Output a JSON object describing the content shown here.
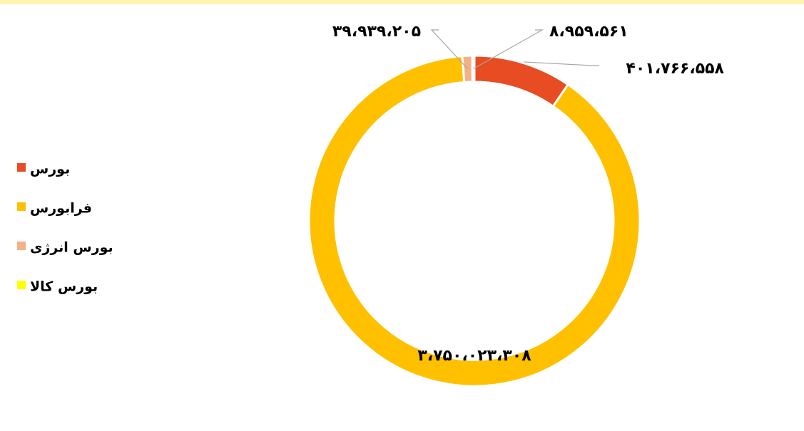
{
  "chart_data": {
    "type": "donut",
    "categories": [
      "بورس",
      "فرابورس",
      "بورس انرژی",
      "بورس کالا"
    ],
    "values": [
      401766558,
      3750023308,
      39939205,
      8959561
    ],
    "value_labels": [
      "۴۰۱،۷۶۶،۵۵۸",
      "۳،۷۵۰،۰۲۳،۳۰۸",
      "۳۹،۹۳۹،۲۰۵",
      "۸،۹۵۹،۵۶۱"
    ],
    "colors": [
      "#e84c22",
      "#ffc000",
      "#f4b183",
      "#ffff00"
    ],
    "legend": "left"
  }
}
